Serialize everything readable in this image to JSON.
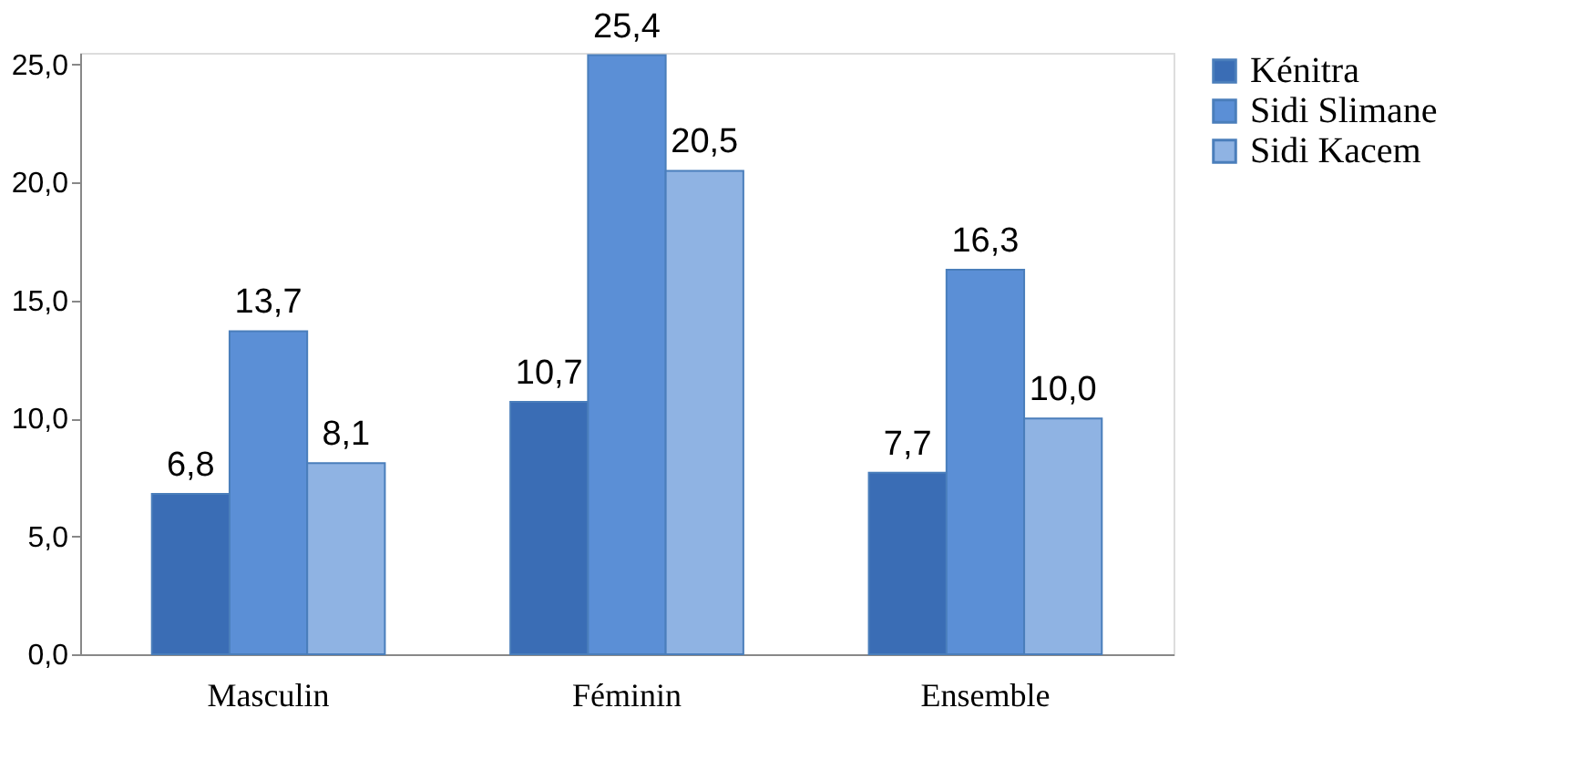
{
  "chart_data": {
    "type": "bar",
    "categories": [
      "Masculin",
      "Féminin",
      "Ensemble"
    ],
    "series": [
      {
        "name": "Kénitra",
        "color": "#3a6db5",
        "values": [
          6.8,
          10.7,
          7.7
        ],
        "value_labels": [
          "6,8",
          "10,7",
          "7,7"
        ]
      },
      {
        "name": "Sidi Slimane",
        "color": "#5b8fd6",
        "values": [
          13.7,
          25.4,
          16.3
        ],
        "value_labels": [
          "13,7",
          "25,4",
          "16,3"
        ]
      },
      {
        "name": "Sidi Kacem",
        "color": "#8fb3e3",
        "values": [
          8.1,
          20.5,
          10.0
        ],
        "value_labels": [
          "8,1",
          "20,5",
          "10,0"
        ]
      }
    ],
    "ylim": [
      0,
      25.5
    ],
    "yticks": [
      {
        "value": 0,
        "label": "0,0"
      },
      {
        "value": 5,
        "label": "5,0"
      },
      {
        "value": 10,
        "label": "10,0"
      },
      {
        "value": 15,
        "label": "15,0"
      },
      {
        "value": 20,
        "label": "20,0"
      },
      {
        "value": 25,
        "label": "25,0"
      }
    ],
    "grid": false,
    "legend": "top right"
  }
}
